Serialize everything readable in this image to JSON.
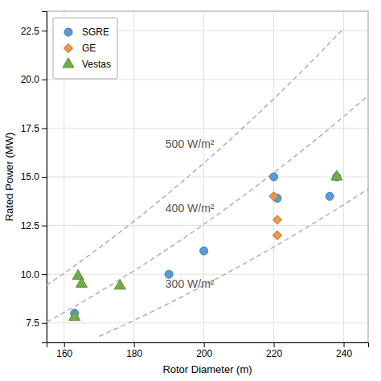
{
  "chart_data": {
    "type": "scatter",
    "xlabel": "Rotor Diameter (m)",
    "ylabel": "Rated Power (MW)",
    "xlim": [
      155,
      247
    ],
    "ylim": [
      6.5,
      23.5
    ],
    "xticks": [
      160,
      180,
      200,
      220,
      240
    ],
    "yticks": [
      7.5,
      {
        "value": 10.0,
        "label": "10.0"
      },
      12.5,
      {
        "value": 15.0,
        "label": "15.0"
      },
      17.5,
      {
        "value": 20.0,
        "label": "20.0"
      },
      22.5
    ],
    "grid": true,
    "legend": "upper left",
    "series": [
      {
        "type": "line",
        "line_style": "dashed",
        "color": "#b0b0b0",
        "x": [
          170,
          180,
          190,
          200,
          210,
          220,
          230,
          240,
          247
        ],
        "values": [
          6.809,
          7.634,
          8.506,
          9.425,
          10.391,
          11.404,
          12.464,
          13.572,
          14.375
        ]
      },
      {
        "type": "line",
        "line_style": "dashed",
        "color": "#b0b0b0",
        "x": [
          155,
          160,
          170,
          180,
          190,
          200,
          210,
          220,
          230,
          240,
          247
        ],
        "values": [
          7.548,
          8.042,
          9.079,
          10.179,
          11.341,
          12.566,
          13.854,
          15.205,
          16.619,
          18.096,
          19.167
        ]
      },
      {
        "type": "line",
        "line_style": "dashed",
        "color": "#b0b0b0",
        "x": [
          155,
          160,
          170,
          180,
          190,
          200,
          210,
          220,
          230,
          240
        ],
        "values": [
          9.435,
          10.053,
          11.349,
          12.723,
          14.176,
          15.708,
          17.318,
          19.007,
          20.774,
          22.619
        ]
      },
      {
        "name": "SGRE",
        "type": "scatter",
        "marker": "circle",
        "color": "#5b9bd5",
        "x": [
          163,
          190,
          200,
          220,
          221,
          236,
          238
        ],
        "values": [
          8.0,
          10.0,
          11.2,
          15.0,
          13.9,
          14.0,
          15.0
        ]
      },
      {
        "name": "GE",
        "type": "scatter",
        "marker": "diamond",
        "color": "#ed9a4a",
        "x": [
          220,
          221,
          221
        ],
        "values": [
          14.0,
          12.8,
          12.0
        ]
      },
      {
        "name": "Vestas",
        "type": "scatter",
        "marker": "triangle",
        "color": "#70ad47",
        "x": [
          163,
          164,
          165,
          176,
          238
        ],
        "values": [
          7.8,
          9.9,
          9.5,
          9.4,
          15.0
        ]
      }
    ],
    "annotations": [
      {
        "text": "500 W/m²",
        "x": 189,
        "y": 16.5,
        "color": "#555555"
      },
      {
        "text": "400 W/m²",
        "x": 189,
        "y": 13.2,
        "color": "#555555"
      },
      {
        "text": "300 W/m²",
        "x": 189,
        "y": 9.3,
        "color": "#555555"
      }
    ]
  }
}
